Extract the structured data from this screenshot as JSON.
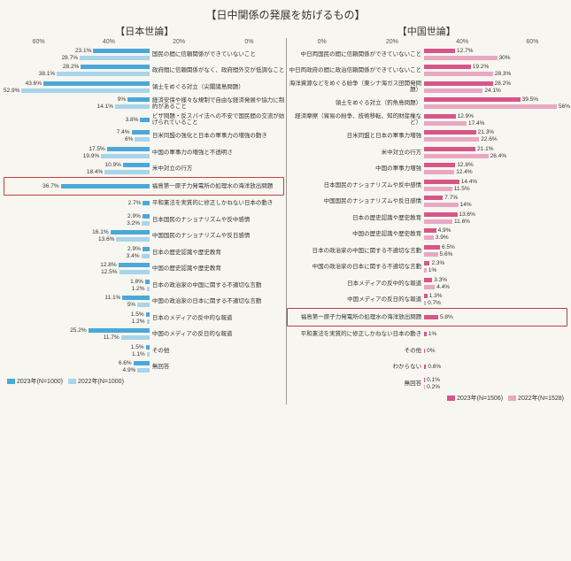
{
  "title": "【日中関係の発展を妨げるもの】",
  "subtitle_left": "【日本世論】",
  "subtitle_right": "【中国世論】",
  "axis_max": 60,
  "axis_ticks": [
    "60%",
    "40%",
    "20%",
    "0%"
  ],
  "axis_ticks_right": [
    "0%",
    "20%",
    "40%",
    "60%"
  ],
  "colors": {
    "jp_2023": "#4aa8d8",
    "jp_2022": "#a8d4ec",
    "cn_2023": "#d6568a",
    "cn_2022": "#e8a8c4",
    "background": "#f8f6f0",
    "highlight_border": "#c04040"
  },
  "legend_left": [
    {
      "label": "2023年(N=1000)",
      "color": "#4aa8d8"
    },
    {
      "label": "2022年(N=1000)",
      "color": "#a8d4ec"
    }
  ],
  "legend_right": [
    {
      "label": "2023年(N=1506)",
      "color": "#d6568a"
    },
    {
      "label": "2022年(N=1528)",
      "color": "#e8a8c4"
    }
  ],
  "left_rows": [
    {
      "label": "国民の間に信頼関係ができていないこと",
      "v2023": 23.1,
      "v2022": 28.7
    },
    {
      "label": "政府間に信頼関係がなく、政府間外交が低調なこと",
      "v2023": 28.2,
      "v2022": 38.1
    },
    {
      "label": "領土をめぐる対立（尖閣諸島問題）",
      "v2023": 43.6,
      "v2022": 52.9
    },
    {
      "label": "経済安保や様々な規制で自由な経済発展や協力に制約があること",
      "v2023": 9.0,
      "v2022": 14.1
    },
    {
      "label": "ビザ問題・反スパイ法への不安で国民間の交流が妨げられていること",
      "v2023": 3.8,
      "v2022": null
    },
    {
      "label": "日米同盟の強化と日本の軍事力の増強の動き",
      "v2023": 7.4,
      "v2022": 6.0
    },
    {
      "label": "中国の軍事力の増強と不透明さ",
      "v2023": 17.5,
      "v2022": 19.9
    },
    {
      "label": "米中対立の行方",
      "v2023": 10.9,
      "v2022": 18.4
    },
    {
      "label": "福島第一原子力発電所の処理水の海洋放出問題",
      "v2023": 36.7,
      "v2022": null,
      "highlight": true
    },
    {
      "label": "平和憲法を実質的に修正しかねない日本の動き",
      "v2023": 2.7,
      "v2022": null
    },
    {
      "label": "日本国民のナショナリズムや反中感情",
      "v2023": 2.9,
      "v2022": 3.2
    },
    {
      "label": "中国国民のナショナリズムや反日感情",
      "v2023": 16.1,
      "v2022": 13.6
    },
    {
      "label": "日本の歴史認識や歴史教育",
      "v2023": 2.9,
      "v2022": 3.4
    },
    {
      "label": "中国の歴史認識や歴史教育",
      "v2023": 12.8,
      "v2022": 12.5
    },
    {
      "label": "日本の政治家の中国に関する不適切な言動",
      "v2023": 1.8,
      "v2022": 1.2
    },
    {
      "label": "中国の政治家の日本に関する不適切な言動",
      "v2023": 11.1,
      "v2022": 5.0
    },
    {
      "label": "日本のメディアの反中的な報道",
      "v2023": 1.5,
      "v2022": 1.2
    },
    {
      "label": "中国のメディアの反日的な報道",
      "v2023": 25.2,
      "v2022": 11.7
    },
    {
      "label": "その他",
      "v2023": 1.5,
      "v2022": 1.1
    },
    {
      "label": "無回答",
      "v2023": 6.6,
      "v2022": 4.9
    }
  ],
  "right_rows": [
    {
      "label": "中日両国民の間に信頼関係ができていないこと",
      "v2023": 12.7,
      "v2022": 30.0
    },
    {
      "label": "中日両政府の間に政治信頼関係ができていないこと",
      "v2023": 19.2,
      "v2022": 28.3
    },
    {
      "label": "海洋資源などをめぐる紛争（東シナ海ガス田開発問題）",
      "v2023": 28.2,
      "v2022": 24.1
    },
    {
      "label": "領土をめぐる対立（釣魚島問題）",
      "v2023": 39.5,
      "v2022": 56.0
    },
    {
      "label": "経済摩擦（貿易の紛争、技術移転、知的財産権など）",
      "v2023": 12.9,
      "v2022": 17.4
    },
    {
      "label": "日米同盟と日本の軍事力増強",
      "v2023": 21.3,
      "v2022": 22.6
    },
    {
      "label": "米中対立の行方",
      "v2023": 21.1,
      "v2022": 26.4
    },
    {
      "label": "中国の軍事力増強",
      "v2023": 12.8,
      "v2022": 12.4
    },
    {
      "label": "日本国民のナショナリズムや反中感情",
      "v2023": 14.4,
      "v2022": 11.5
    },
    {
      "label": "中国国民のナショナリズムや反日感情",
      "v2023": 7.7,
      "v2022": 14.0
    },
    {
      "label": "日本の歴史認識や歴史教育",
      "v2023": 13.6,
      "v2022": 11.6
    },
    {
      "label": "中国の歴史認識や歴史教育",
      "v2023": 4.9,
      "v2022": 3.9
    },
    {
      "label": "日本の政治家の中国に関する不適切な言動",
      "v2023": 6.5,
      "v2022": 5.6
    },
    {
      "label": "中国の政治家の日本に関する不適切な言動",
      "v2023": 2.3,
      "v2022": 1.0
    },
    {
      "label": "日本メディアの反中的な報道",
      "v2023": 3.3,
      "v2022": 4.4
    },
    {
      "label": "中国メディアの反日的な報道",
      "v2023": 1.3,
      "v2022": 0.7
    },
    {
      "label": "福島第一原子力発電所の処理水の海洋放出問題",
      "v2023": 5.8,
      "v2022": null,
      "highlight": true
    },
    {
      "label": "平和憲法を実質的に修正しかねない日本の動き",
      "v2023": 1.0,
      "v2022": null
    },
    {
      "label": "その他",
      "v2023": 0.0,
      "v2022": null
    },
    {
      "label": "わからない",
      "v2023": 0.8,
      "v2022": null
    },
    {
      "label": "無回答",
      "v2023": 0.1,
      "v2022": 0.2
    }
  ]
}
